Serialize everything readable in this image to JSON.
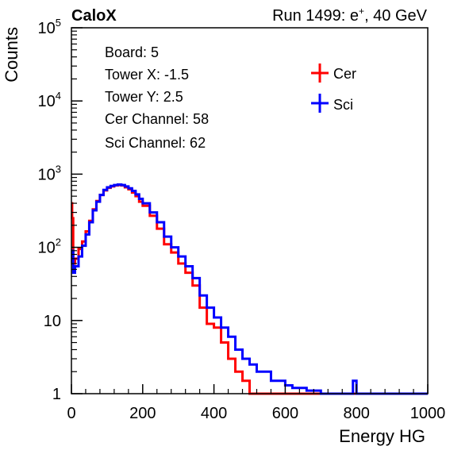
{
  "header": {
    "experiment": "CaloX",
    "run_prefix": "Run 1499: e",
    "run_suffix": ", 40 GeV",
    "run_charge": "+"
  },
  "info_box": {
    "lines": [
      "Board: 5",
      "Tower X: -1.5",
      "Tower Y: 2.5",
      "Cer Channel: 58",
      "Sci Channel: 62"
    ]
  },
  "legend": {
    "items": [
      "Cer",
      "Sci"
    ]
  },
  "colors": {
    "cer": "#ff0000",
    "sci": "#0000ff",
    "axis": "#000000"
  },
  "chart_data": {
    "type": "line",
    "xlabel": "Energy HG",
    "ylabel": "Counts",
    "xlim": [
      0,
      1000
    ],
    "ylim": [
      1,
      100000
    ],
    "yscale": "log",
    "grid": false,
    "legend_position": "top-right",
    "x_ticks": [
      "0",
      "200",
      "400",
      "600",
      "800",
      "1000"
    ],
    "y_ticks": [
      {
        "base": "1",
        "exp": ""
      },
      {
        "base": "10",
        "exp": ""
      },
      {
        "base": "10",
        "exp": "2"
      },
      {
        "base": "10",
        "exp": "3"
      },
      {
        "base": "10",
        "exp": "4"
      },
      {
        "base": "10",
        "exp": "5"
      }
    ],
    "x": [
      0,
      2,
      5,
      10,
      20,
      30,
      40,
      50,
      60,
      70,
      80,
      90,
      100,
      110,
      120,
      130,
      140,
      150,
      160,
      170,
      180,
      190,
      200,
      220,
      240,
      260,
      280,
      300,
      320,
      340,
      360,
      380,
      400,
      420,
      440,
      460,
      480,
      500,
      520,
      540,
      560,
      580,
      600,
      620,
      640,
      660,
      680,
      700,
      720,
      760,
      790,
      800,
      820,
      850,
      900,
      950,
      1000
    ],
    "series": [
      {
        "name": "Cer",
        "values": [
          400,
          250,
          60,
          70,
          95,
          120,
          165,
          230,
          330,
          430,
          520,
          600,
          650,
          680,
          700,
          710,
          700,
          660,
          620,
          560,
          500,
          420,
          370,
          270,
          180,
          110,
          85,
          60,
          45,
          30,
          15,
          9,
          8,
          5,
          3,
          2,
          1.5,
          1,
          1,
          1,
          1,
          1,
          1,
          1,
          1,
          1,
          1,
          1,
          1,
          1,
          1,
          1,
          1,
          1,
          1,
          1,
          1
        ]
      },
      {
        "name": "Sci",
        "values": [
          60,
          90,
          45,
          55,
          75,
          105,
          150,
          220,
          320,
          420,
          520,
          610,
          660,
          690,
          710,
          720,
          710,
          680,
          640,
          590,
          530,
          460,
          400,
          300,
          220,
          140,
          100,
          75,
          55,
          38,
          22,
          15,
          11,
          8,
          6,
          4,
          3,
          2.5,
          2,
          2,
          1.5,
          1.5,
          1.3,
          1.2,
          1.2,
          1.1,
          1.1,
          1,
          1,
          1,
          1.5,
          1,
          1,
          1,
          1,
          1,
          1
        ]
      }
    ]
  }
}
